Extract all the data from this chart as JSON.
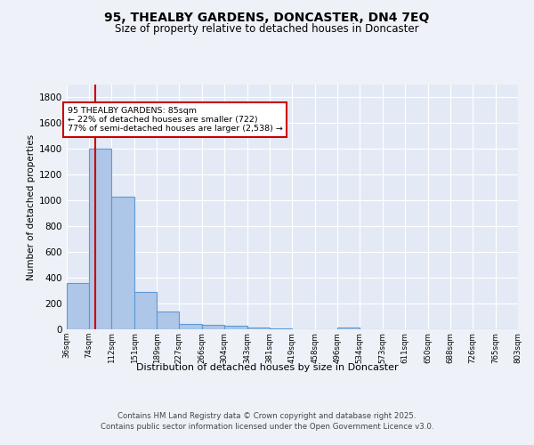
{
  "title": "95, THEALBY GARDENS, DONCASTER, DN4 7EQ",
  "subtitle": "Size of property relative to detached houses in Doncaster",
  "xlabel": "Distribution of detached houses by size in Doncaster",
  "ylabel": "Number of detached properties",
  "bin_edges": [
    36,
    74,
    112,
    151,
    189,
    227,
    266,
    304,
    343,
    381,
    419,
    458,
    496,
    534,
    573,
    611,
    650,
    688,
    726,
    765,
    803
  ],
  "bar_heights": [
    360,
    1400,
    1030,
    290,
    135,
    40,
    35,
    25,
    15,
    10,
    0,
    0,
    15,
    0,
    0,
    0,
    0,
    0,
    0,
    0
  ],
  "bar_color": "#aec6e8",
  "bar_edge_color": "#5b9bd5",
  "property_size": 85,
  "red_line_color": "#cc0000",
  "annotation_text": "95 THEALBY GARDENS: 85sqm\n← 22% of detached houses are smaller (722)\n77% of semi-detached houses are larger (2,538) →",
  "annotation_box_color": "#ffffff",
  "annotation_box_edge": "#cc0000",
  "ylim": [
    0,
    1900
  ],
  "yticks": [
    0,
    200,
    400,
    600,
    800,
    1000,
    1200,
    1400,
    1600,
    1800
  ],
  "background_color": "#eef2f8",
  "plot_bg_color": "#e4eaf5",
  "footer_line1": "Contains HM Land Registry data © Crown copyright and database right 2025.",
  "footer_line2": "Contains public sector information licensed under the Open Government Licence v3.0."
}
